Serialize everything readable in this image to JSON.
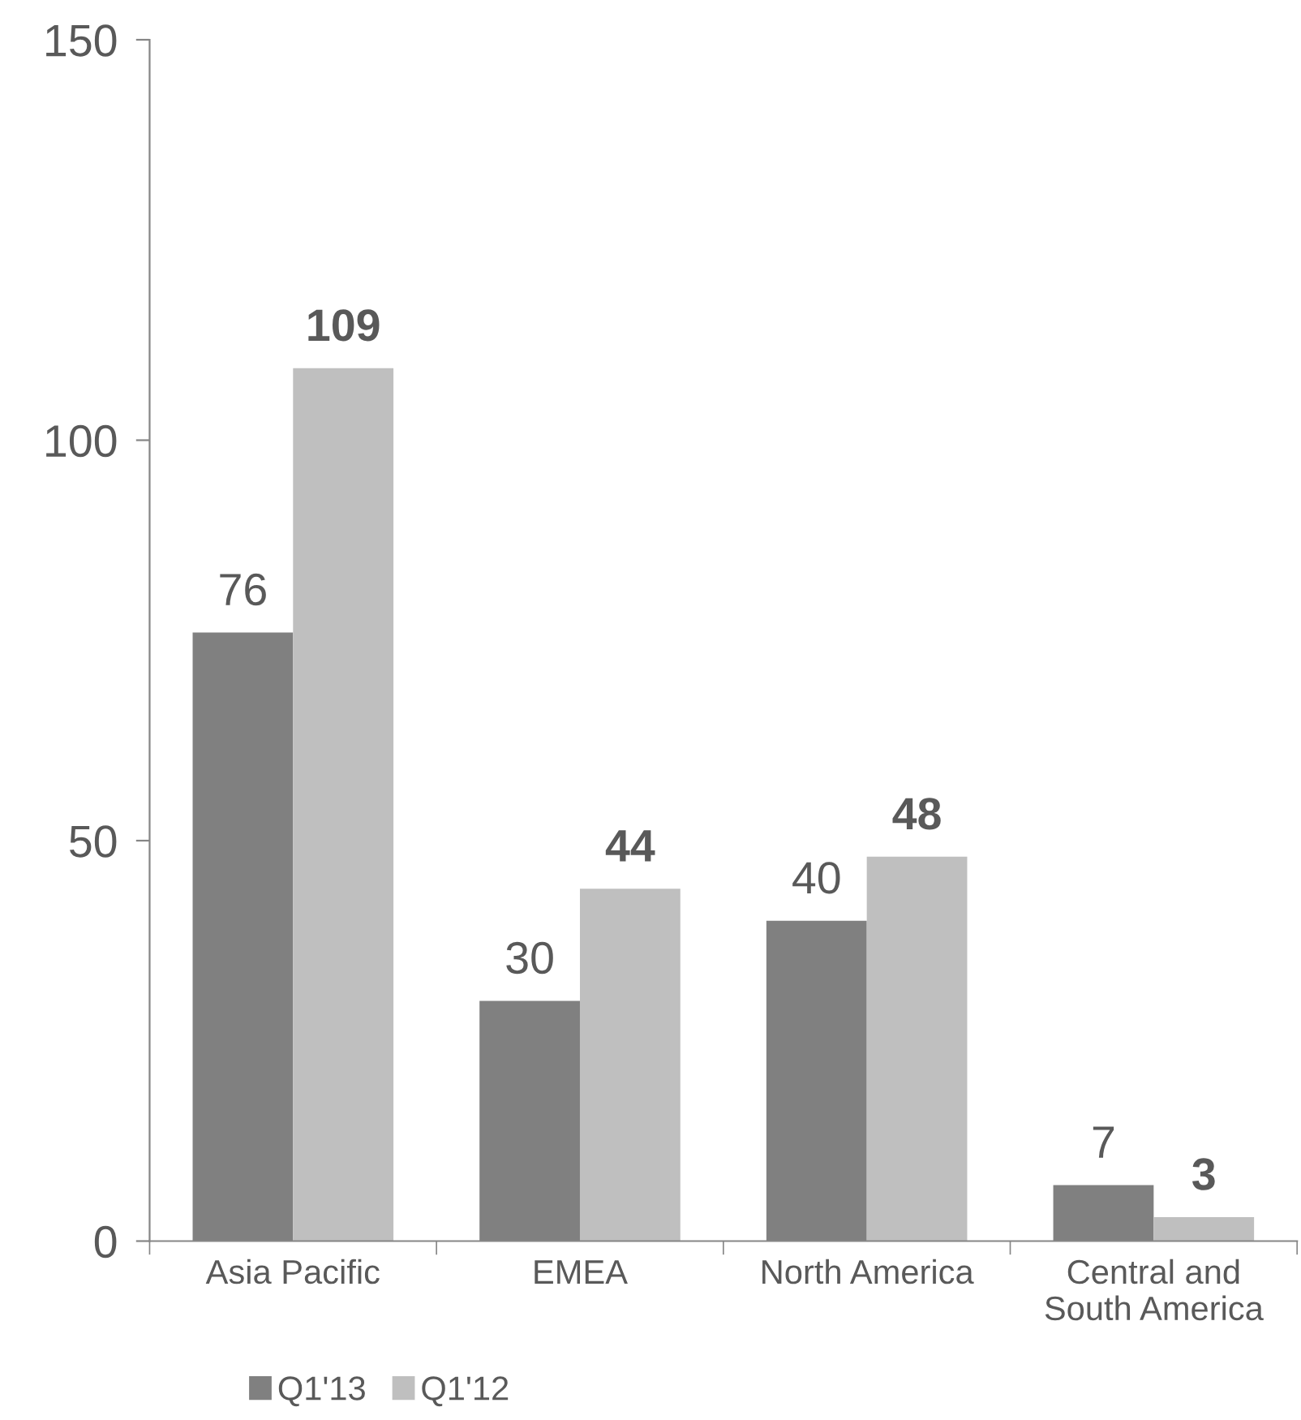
{
  "chart_data": {
    "type": "bar",
    "categories": [
      "Asia Pacific",
      "EMEA",
      "North America",
      "Central and\nSouth America"
    ],
    "series": [
      {
        "name": "Q1'13",
        "color": "#808080",
        "values": [
          76,
          30,
          40,
          7
        ]
      },
      {
        "name": "Q1'12",
        "color": "#bfbfbf",
        "values": [
          109,
          44,
          48,
          3
        ]
      }
    ],
    "ylim": [
      0,
      150
    ],
    "yticks": [
      0,
      50,
      100,
      150
    ],
    "grid": false,
    "legend": "bottom",
    "data_labels": true
  }
}
